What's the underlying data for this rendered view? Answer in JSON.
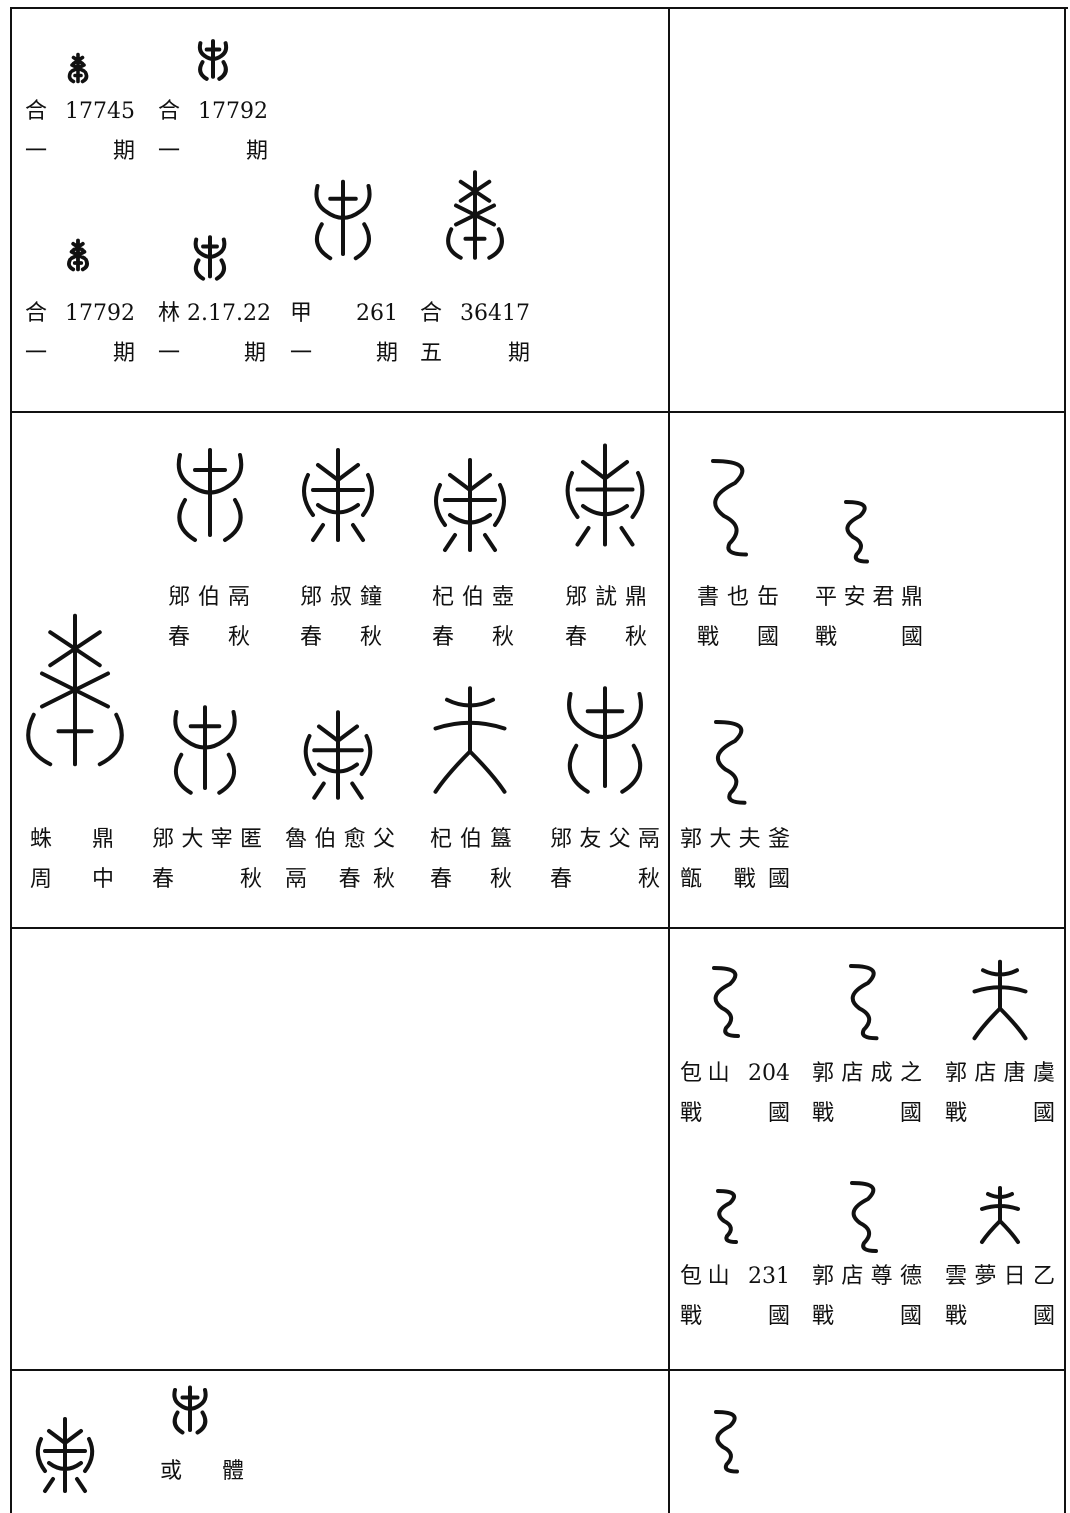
{
  "cells": [
    {
      "entries": [
        {
          "source": "合 17745",
          "period": "一 期"
        },
        {
          "source": "合 17792",
          "period": "一 期"
        },
        {
          "source": "合 17792",
          "period": "一 期"
        },
        {
          "source": "林 2.17.22",
          "period": "一 期"
        },
        {
          "source": "甲 261",
          "period": "一 期"
        },
        {
          "source": "合 36417",
          "period": "五 期"
        }
      ]
    },
    {
      "entries": [
        {
          "source": "郳伯鬲",
          "period": "春 秋"
        },
        {
          "source": "郳叔鐘",
          "period": "春 秋"
        },
        {
          "source": "杞伯壺",
          "period": "春 秋"
        },
        {
          "source": "郳訧鼎",
          "period": "春 秋"
        },
        {
          "source": "蛛 鼎",
          "period": "周 中"
        },
        {
          "source": "郳大宰匿",
          "period": "春 秋"
        },
        {
          "source": "魯伯愈父",
          "period": "鬲 春秋"
        },
        {
          "source": "杞伯簋",
          "period": "春 秋"
        },
        {
          "source": "郳友父鬲",
          "period": "春 秋"
        }
      ]
    },
    {
      "entries": [
        {
          "source": "書也缶",
          "period": "戰 國"
        },
        {
          "source": "平安君鼎",
          "period": "戰 國"
        },
        {
          "source": "郭大夫釜",
          "period": "甑 戰國"
        }
      ]
    },
    {
      "entries": [
        {
          "source": "包山 204",
          "period": "戰 國"
        },
        {
          "source": "郭店成之",
          "period": "戰 國"
        },
        {
          "source": "郭店唐虞",
          "period": "戰 國"
        },
        {
          "source": "包山 231",
          "period": "戰 國"
        },
        {
          "source": "郭店尊德",
          "period": "戰 國"
        },
        {
          "source": "雲夢日乙",
          "period": "戰 國"
        }
      ]
    },
    {
      "entries": [
        {
          "source": "或 體"
        }
      ]
    }
  ]
}
